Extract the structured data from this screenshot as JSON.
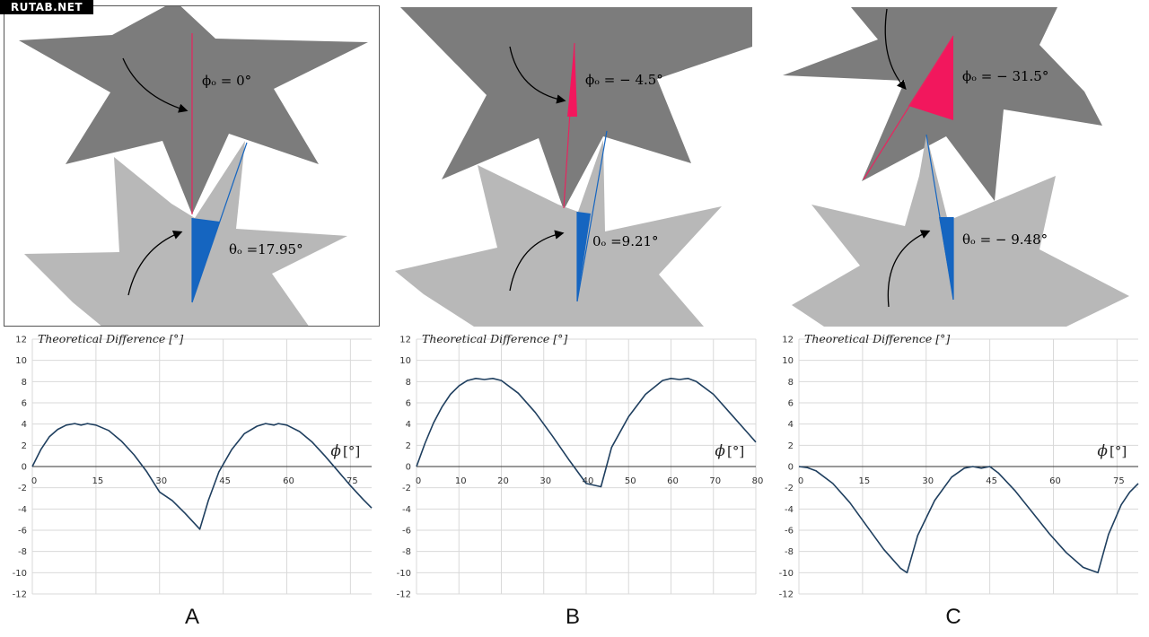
{
  "watermark": "RUTAB.NET",
  "colors": {
    "upper_gear": "#7c7c7c",
    "lower_gear": "#b8b8b8",
    "red_wedge": "#f2175d",
    "blue_wedge": "#1565c0",
    "curve": "#1f3f5f",
    "grid": "#d9d9d9"
  },
  "panels": [
    {
      "letter": "A",
      "phi_label": "ϕₒ = 0°",
      "theta_label": "θₒ =17.95°"
    },
    {
      "letter": "B",
      "phi_label": "ϕₒ = − 4.5°",
      "theta_label": "0ₒ =9.21°"
    },
    {
      "letter": "C",
      "phi_label": "ϕₒ = − 31.5°",
      "theta_label": "θₒ = − 9.48°"
    }
  ],
  "chart_data": [
    {
      "type": "line",
      "title": "Theoretical Difference [°]",
      "xlabel_symbol": "ϕ",
      "xlabel_unit": "[°]",
      "ylim": [
        -12,
        12
      ],
      "xlim": [
        0,
        80
      ],
      "xticks": [
        0,
        15,
        30,
        45,
        60,
        75
      ],
      "yticks": [
        -12,
        -10,
        -8,
        -6,
        -4,
        -2,
        0,
        2,
        4,
        6,
        8,
        10,
        12
      ],
      "grid": true,
      "x": [
        0,
        2,
        4,
        6,
        8,
        10,
        11.5,
        13,
        15,
        18,
        21,
        24,
        27,
        30,
        33,
        36,
        39.5,
        41.5,
        44,
        47,
        50,
        53,
        55,
        57,
        58,
        60,
        63,
        66,
        69,
        72,
        75,
        78,
        80
      ],
      "y": [
        0,
        1.6,
        2.8,
        3.5,
        3.9,
        4.05,
        3.9,
        4.05,
        3.9,
        3.4,
        2.4,
        1.1,
        -0.5,
        -2.4,
        -3.2,
        -4.4,
        -5.9,
        -3.2,
        -0.5,
        1.6,
        3.1,
        3.8,
        4.05,
        3.9,
        4.05,
        3.9,
        3.3,
        2.3,
        1.0,
        -0.4,
        -1.8,
        -3.1,
        -3.9
      ]
    },
    {
      "type": "line",
      "title": "Theoretical Difference [°]",
      "xlabel_symbol": "ϕ",
      "xlabel_unit": "[°]",
      "ylim": [
        -12,
        12
      ],
      "xlim": [
        0,
        80
      ],
      "xticks": [
        0,
        10,
        20,
        30,
        40,
        50,
        60,
        70,
        80
      ],
      "yticks": [
        -12,
        -10,
        -8,
        -6,
        -4,
        -2,
        0,
        2,
        4,
        6,
        8,
        10,
        12
      ],
      "grid": true,
      "x": [
        0,
        2,
        4,
        6,
        8,
        10,
        12,
        14,
        16,
        18,
        20,
        24,
        28,
        32,
        36,
        40,
        43.5,
        46,
        50,
        54,
        58,
        60,
        62,
        64,
        66,
        70,
        74,
        78,
        80
      ],
      "y": [
        0,
        2.2,
        4.1,
        5.6,
        6.8,
        7.6,
        8.1,
        8.3,
        8.2,
        8.3,
        8.1,
        6.9,
        5.1,
        2.9,
        0.6,
        -1.6,
        -1.9,
        1.8,
        4.7,
        6.8,
        8.1,
        8.3,
        8.2,
        8.3,
        8.0,
        6.8,
        5.0,
        3.2,
        2.3
      ]
    },
    {
      "type": "line",
      "title": "Theoretical Difference [°]",
      "xlabel_symbol": "ϕ",
      "xlabel_unit": "[°]",
      "ylim": [
        -12,
        12
      ],
      "xlim": [
        0,
        80
      ],
      "xticks": [
        0,
        15,
        30,
        45,
        60,
        75
      ],
      "yticks": [
        -12,
        -10,
        -8,
        -6,
        -4,
        -2,
        0,
        2,
        4,
        6,
        8,
        10,
        12
      ],
      "grid": true,
      "x": [
        0,
        2,
        4,
        8,
        12,
        16,
        20,
        24,
        25.5,
        28,
        32,
        36,
        39,
        41,
        43,
        45,
        47,
        51,
        55,
        59,
        63,
        67,
        70.5,
        73,
        76,
        78,
        80
      ],
      "y": [
        0,
        -0.1,
        -0.4,
        -1.6,
        -3.4,
        -5.6,
        -7.8,
        -9.6,
        -10,
        -6.5,
        -3.2,
        -1.0,
        -0.15,
        0,
        -0.15,
        0,
        -0.6,
        -2.3,
        -4.3,
        -6.3,
        -8.1,
        -9.5,
        -10,
        -6.4,
        -3.6,
        -2.4,
        -1.6
      ]
    }
  ]
}
